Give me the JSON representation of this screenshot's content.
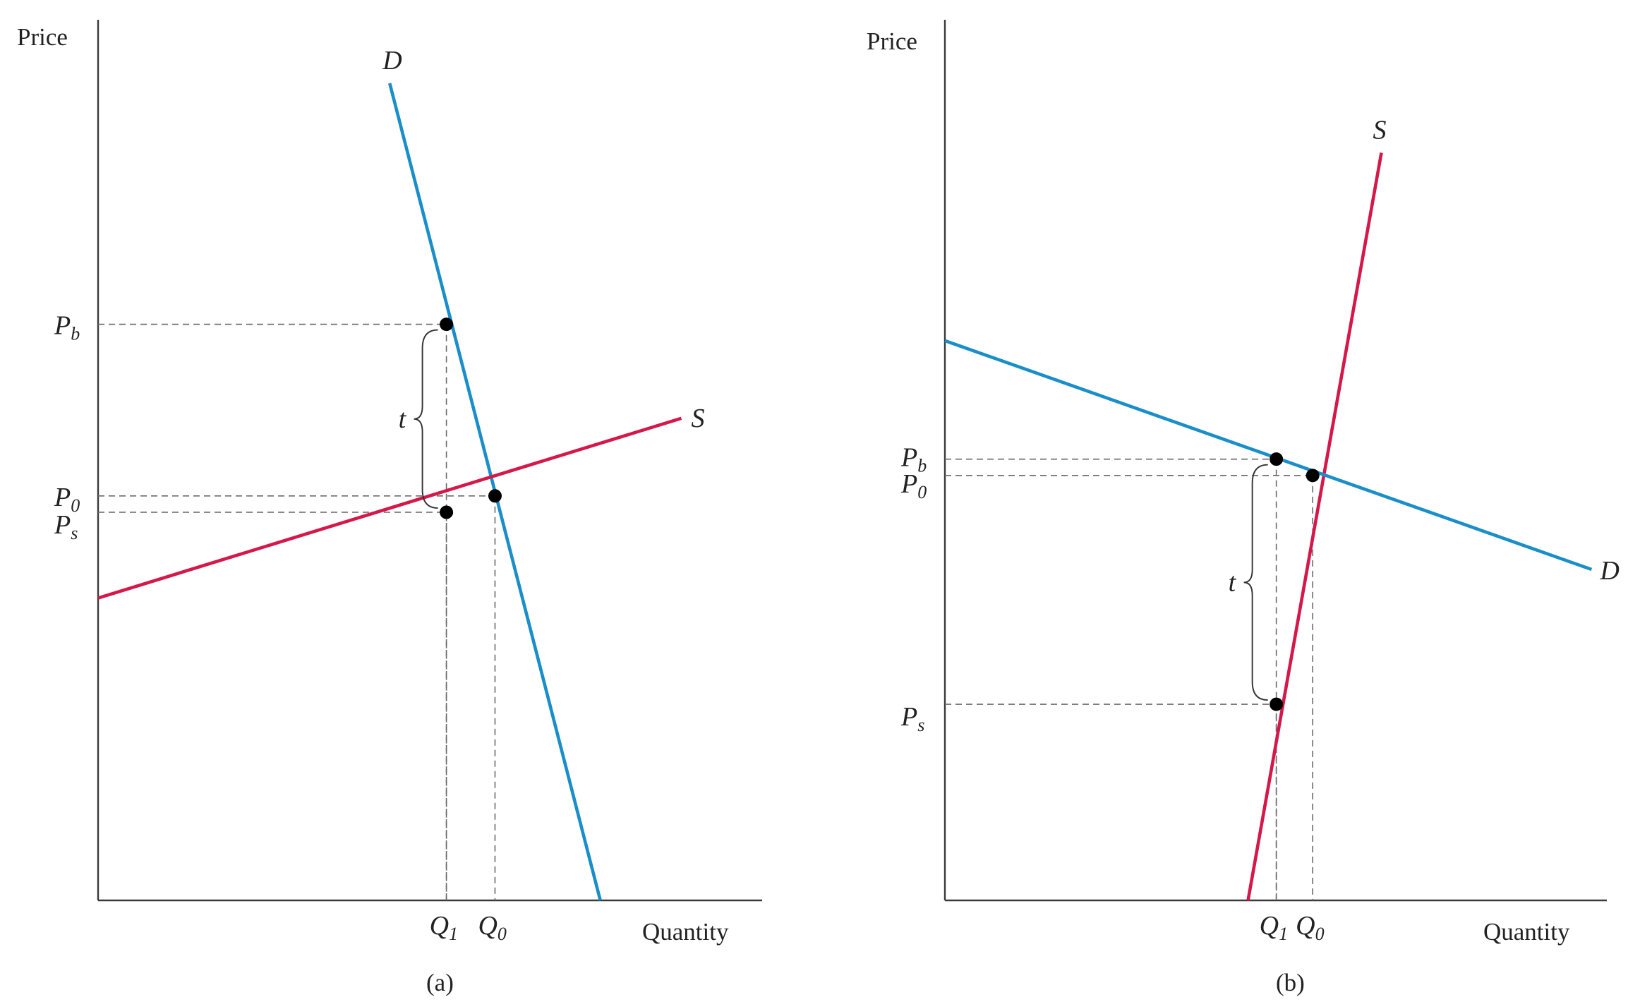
{
  "chart_data": [
    {
      "type": "line",
      "panel_label": "(a)",
      "ylabel": "Price",
      "xlabel": "Quantity",
      "colors": {
        "demand": "#1a8ec8",
        "supply": "#d4184a"
      },
      "series": [
        {
          "name": "D",
          "color": "#1a8ec8",
          "points": [
            [
              7.2,
              20.0
            ],
            [
              12.4,
              0.0
            ]
          ]
        },
        {
          "name": "S",
          "color": "#d4184a",
          "points": [
            [
              0.0,
              7.4
            ],
            [
              14.4,
              11.8
            ]
          ]
        }
      ],
      "x_ticks": [
        {
          "main": "Q",
          "sub": "1",
          "value": 8.6
        },
        {
          "main": "Q",
          "sub": "0",
          "value": 9.8
        }
      ],
      "y_ticks": [
        {
          "main": "P",
          "sub": "b",
          "value": 14.1
        },
        {
          "main": "P",
          "sub": "0",
          "value": 9.9
        },
        {
          "main": "P",
          "sub": "s",
          "value": 9.5
        }
      ],
      "points": [
        {
          "x": 8.6,
          "y": 14.1
        },
        {
          "x": 9.8,
          "y": 9.9
        },
        {
          "x": 8.6,
          "y": 9.5
        }
      ],
      "annotations": [
        {
          "text": "t",
          "type": "brace",
          "x": 8.6,
          "y_from": 9.5,
          "y_to": 14.1
        }
      ],
      "xlim": [
        0,
        16.5
      ],
      "ylim": [
        0,
        20.0
      ]
    },
    {
      "type": "line",
      "panel_label": "(b)",
      "ylabel": "Price",
      "xlabel": "Quantity",
      "colors": {
        "demand": "#1a8ec8",
        "supply": "#d4184a"
      },
      "series": [
        {
          "name": "S",
          "color": "#d4184a",
          "points": [
            [
              7.5,
              0.0
            ],
            [
              10.8,
              18.3
            ]
          ]
        },
        {
          "name": "D",
          "color": "#1a8ec8",
          "points": [
            [
              0.0,
              13.7
            ],
            [
              16.0,
              8.1
            ]
          ]
        }
      ],
      "x_ticks": [
        {
          "main": "Q",
          "sub": "1",
          "value": 8.2
        },
        {
          "main": "Q",
          "sub": "0",
          "value": 9.1
        }
      ],
      "y_ticks": [
        {
          "main": "P",
          "sub": "b",
          "value": 10.8
        },
        {
          "main": "P",
          "sub": "0",
          "value": 10.4
        },
        {
          "main": "P",
          "sub": "s",
          "value": 4.8
        }
      ],
      "points": [
        {
          "x": 8.2,
          "y": 10.8
        },
        {
          "x": 9.1,
          "y": 10.4
        },
        {
          "x": 8.2,
          "y": 4.8
        }
      ],
      "annotations": [
        {
          "text": "t",
          "type": "brace",
          "x": 8.2,
          "y_from": 4.8,
          "y_to": 10.8
        }
      ],
      "xlim": [
        0,
        16.5
      ],
      "ylim": [
        0,
        20.0
      ]
    }
  ]
}
